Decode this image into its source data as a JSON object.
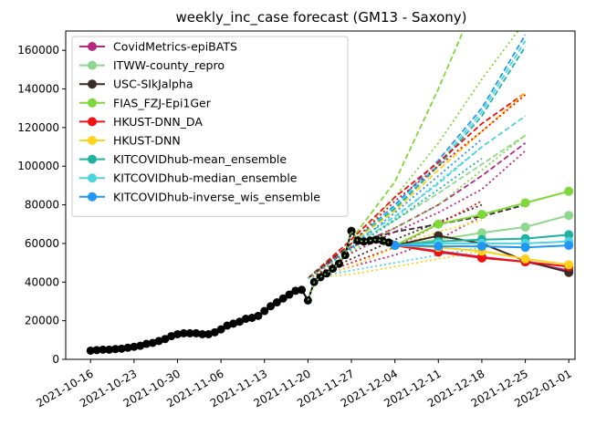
{
  "chart_data": {
    "type": "line",
    "title": "weekly_inc_case forecast (GM13 - Saxony)",
    "xlabel": "",
    "ylabel": "",
    "xlim": [
      "2021-10-12",
      "2022-01-02"
    ],
    "ylim": [
      0,
      170000
    ],
    "x_ticks": [
      "2021-10-16",
      "2021-10-23",
      "2021-10-30",
      "2021-11-06",
      "2021-11-13",
      "2021-11-20",
      "2021-11-27",
      "2021-12-04",
      "2021-12-11",
      "2021-12-18",
      "2021-12-25",
      "2022-01-01"
    ],
    "y_ticks": [
      0,
      20000,
      40000,
      60000,
      80000,
      100000,
      120000,
      140000,
      160000
    ],
    "y_tick_labels": [
      "0",
      "20000",
      "40000",
      "60000",
      "80000",
      "100000",
      "120000",
      "140000",
      "160000"
    ],
    "grid": false,
    "legend_position": "top-left",
    "observed": {
      "color": "#000000",
      "x": [
        "2021-10-16",
        "2021-10-17",
        "2021-10-18",
        "2021-10-19",
        "2021-10-20",
        "2021-10-21",
        "2021-10-22",
        "2021-10-23",
        "2021-10-24",
        "2021-10-25",
        "2021-10-26",
        "2021-10-27",
        "2021-10-28",
        "2021-10-29",
        "2021-10-30",
        "2021-10-31",
        "2021-11-01",
        "2021-11-02",
        "2021-11-03",
        "2021-11-04",
        "2021-11-05",
        "2021-11-06",
        "2021-11-07",
        "2021-11-08",
        "2021-11-09",
        "2021-11-10",
        "2021-11-11",
        "2021-11-12",
        "2021-11-13",
        "2021-11-14",
        "2021-11-15",
        "2021-11-16",
        "2021-11-17",
        "2021-11-18",
        "2021-11-19",
        "2021-11-20",
        "2021-11-21",
        "2021-11-22",
        "2021-11-23",
        "2021-11-24",
        "2021-11-25",
        "2021-11-26",
        "2021-11-27",
        "2021-11-28",
        "2021-11-29",
        "2021-11-30",
        "2021-12-01",
        "2021-12-02",
        "2021-12-03"
      ],
      "values": [
        4500,
        4800,
        5000,
        5000,
        5300,
        5500,
        6000,
        6500,
        7000,
        8000,
        8500,
        9500,
        10500,
        12000,
        13000,
        13500,
        13500,
        13500,
        13000,
        13000,
        14000,
        15500,
        17500,
        18500,
        19500,
        21000,
        21500,
        22500,
        25000,
        27500,
        29500,
        31500,
        33500,
        35500,
        36000,
        30500,
        40000,
        42500,
        44500,
        47000,
        49500,
        54000,
        66500,
        61500,
        61000,
        61500,
        62000,
        61500,
        60500
      ]
    },
    "forecast_x": [
      "2021-12-04",
      "2021-12-11",
      "2021-12-18",
      "2021-12-25",
      "2022-01-01"
    ],
    "series": [
      {
        "name": "CovidMetrics-epiBATS",
        "color": "#b5297f",
        "values": [
          59000,
          56000,
          53000,
          50500,
          46000
        ]
      },
      {
        "name": "ITWW-county_repro",
        "color": "#8ed88e",
        "values": [
          59000,
          62000,
          65500,
          68500,
          74500
        ]
      },
      {
        "name": "USC-SIkJalpha",
        "color": "#3b2b24",
        "values": [
          59000,
          64000,
          60000,
          51000,
          45000
        ]
      },
      {
        "name": "FIAS_FZJ-Epi1Ger",
        "color": "#7fd83a",
        "values": [
          59000,
          70000,
          75000,
          81000,
          87000
        ]
      },
      {
        "name": "HKUST-DNN_DA",
        "color": "#ee1111",
        "values": [
          59000,
          55500,
          52500,
          50500,
          48000
        ]
      },
      {
        "name": "HKUST-DNN",
        "color": "#ffd21a",
        "values": [
          59000,
          58000,
          56000,
          52000,
          49000
        ]
      },
      {
        "name": "KITCOVIDhub-mean_ensemble",
        "color": "#1fb2a1",
        "values": [
          59000,
          61000,
          62000,
          62500,
          64500
        ]
      },
      {
        "name": "KITCOVIDhub-median_ensemble",
        "color": "#4fd3de",
        "values": [
          59000,
          60000,
          60000,
          60000,
          61000
        ]
      },
      {
        "name": "KITCOVIDhub-inverse_wis_ensemble",
        "color": "#2196f3",
        "values": [
          59000,
          58500,
          58500,
          58000,
          59000
        ]
      }
    ],
    "intervals": [
      {
        "color": "#7fd83a",
        "style": "dashed",
        "points": [
          [
            "2021-11-20",
            42000
          ],
          [
            "2021-11-27",
            62000
          ],
          [
            "2021-12-04",
            92000
          ],
          [
            "2021-12-11",
            140000
          ],
          [
            "2021-12-15",
            170000
          ]
        ]
      },
      {
        "color": "#7fd83a",
        "style": "dotted",
        "points": [
          [
            "2021-11-20",
            42000
          ],
          [
            "2021-11-27",
            60000
          ],
          [
            "2021-12-04",
            84000
          ],
          [
            "2021-12-11",
            112000
          ],
          [
            "2021-12-18",
            145000
          ],
          [
            "2021-12-25",
            175000
          ]
        ]
      },
      {
        "color": "#2196f3",
        "style": "dashed",
        "points": [
          [
            "2021-11-20",
            42000
          ],
          [
            "2021-11-27",
            60000
          ],
          [
            "2021-12-04",
            80000
          ],
          [
            "2021-12-11",
            103000
          ],
          [
            "2021-12-18",
            130000
          ],
          [
            "2021-12-25",
            168000
          ]
        ]
      },
      {
        "color": "#4fd3de",
        "style": "dashed",
        "points": [
          [
            "2021-11-20",
            42000
          ],
          [
            "2021-11-27",
            60000
          ],
          [
            "2021-12-04",
            79000
          ],
          [
            "2021-12-11",
            101000
          ],
          [
            "2021-12-18",
            128000
          ],
          [
            "2021-12-25",
            165000
          ]
        ]
      },
      {
        "color": "#1fb2a1",
        "style": "dashed",
        "points": [
          [
            "2021-11-20",
            42000
          ],
          [
            "2021-11-27",
            60000
          ],
          [
            "2021-12-04",
            78000
          ],
          [
            "2021-12-11",
            100000
          ],
          [
            "2021-12-18",
            126000
          ],
          [
            "2021-12-25",
            162000
          ]
        ]
      },
      {
        "color": "#ee1111",
        "style": "dashed",
        "points": [
          [
            "2021-11-20",
            42000
          ],
          [
            "2021-11-27",
            62000
          ],
          [
            "2021-12-04",
            84000
          ],
          [
            "2021-12-11",
            102000
          ],
          [
            "2021-12-18",
            122000
          ],
          [
            "2021-12-25",
            138000
          ]
        ]
      },
      {
        "color": "#ffd21a",
        "style": "dashed",
        "points": [
          [
            "2021-11-20",
            42000
          ],
          [
            "2021-11-27",
            60000
          ],
          [
            "2021-12-04",
            77000
          ],
          [
            "2021-12-11",
            98000
          ],
          [
            "2021-12-18",
            118000
          ],
          [
            "2021-12-25",
            138000
          ]
        ]
      },
      {
        "color": "#4fd3de",
        "style": "dashed",
        "points": [
          [
            "2021-11-20",
            42000
          ],
          [
            "2021-11-27",
            60000
          ],
          [
            "2021-12-04",
            74000
          ],
          [
            "2021-12-11",
            91000
          ],
          [
            "2021-12-18",
            110000
          ],
          [
            "2021-12-25",
            126000
          ]
        ]
      },
      {
        "color": "#8ed88e",
        "style": "dashed",
        "points": [
          [
            "2021-11-20",
            42000
          ],
          [
            "2021-11-27",
            59000
          ],
          [
            "2021-12-04",
            72000
          ],
          [
            "2021-12-11",
            86000
          ],
          [
            "2021-12-18",
            101000
          ],
          [
            "2021-12-25",
            116000
          ]
        ]
      },
      {
        "color": "#b5297f",
        "style": "dashed",
        "points": [
          [
            "2021-11-20",
            42000
          ],
          [
            "2021-11-27",
            58000
          ],
          [
            "2021-12-04",
            68000
          ],
          [
            "2021-12-11",
            80000
          ],
          [
            "2021-12-18",
            95000
          ],
          [
            "2021-12-25",
            112000
          ]
        ]
      },
      {
        "color": "#3b2b24",
        "style": "dashed",
        "points": [
          [
            "2021-11-20",
            42000
          ],
          [
            "2021-11-27",
            60000
          ],
          [
            "2021-12-04",
            66000
          ],
          [
            "2021-12-11",
            70000
          ],
          [
            "2021-12-18",
            74000
          ],
          [
            "2021-12-25",
            80000
          ]
        ]
      },
      {
        "color": "#ee1111",
        "style": "dotted",
        "points": [
          [
            "2021-11-20",
            42000
          ],
          [
            "2021-11-27",
            60000
          ],
          [
            "2021-12-04",
            82000
          ],
          [
            "2021-12-11",
            100000
          ],
          [
            "2021-12-18",
            118000
          ],
          [
            "2021-12-25",
            137000
          ]
        ]
      },
      {
        "color": "#2196f3",
        "style": "dotted",
        "points": [
          [
            "2021-11-20",
            42000
          ],
          [
            "2021-11-27",
            58000
          ],
          [
            "2021-12-04",
            76000
          ],
          [
            "2021-12-11",
            95000
          ],
          [
            "2021-12-18",
            114000
          ]
        ]
      },
      {
        "color": "#4fd3de",
        "style": "dotted",
        "points": [
          [
            "2021-11-20",
            42000
          ],
          [
            "2021-11-27",
            57000
          ],
          [
            "2021-12-04",
            73000
          ],
          [
            "2021-12-11",
            92000
          ],
          [
            "2021-12-18",
            110000
          ]
        ]
      },
      {
        "color": "#1fb2a1",
        "style": "dotted",
        "points": [
          [
            "2021-11-20",
            42000
          ],
          [
            "2021-11-27",
            57000
          ],
          [
            "2021-12-04",
            72000
          ],
          [
            "2021-12-11",
            88000
          ],
          [
            "2021-12-18",
            104000
          ]
        ]
      },
      {
        "color": "#b5297f",
        "style": "dotted",
        "points": [
          [
            "2021-11-20",
            42000
          ],
          [
            "2021-11-27",
            55000
          ],
          [
            "2021-12-04",
            66000
          ],
          [
            "2021-12-11",
            76000
          ],
          [
            "2021-12-18",
            88000
          ],
          [
            "2021-12-25",
            108000
          ]
        ]
      },
      {
        "color": "#3b2b24",
        "style": "dotted",
        "points": [
          [
            "2021-11-20",
            42000
          ],
          [
            "2021-11-27",
            52000
          ],
          [
            "2021-12-04",
            62000
          ],
          [
            "2021-12-11",
            71000
          ],
          [
            "2021-12-18",
            80000
          ]
        ]
      },
      {
        "color": "#7fd83a",
        "style": "dotted",
        "points": [
          [
            "2021-11-20",
            42000
          ],
          [
            "2021-11-27",
            56000
          ],
          [
            "2021-12-04",
            68000
          ],
          [
            "2021-12-11",
            80000
          ],
          [
            "2021-12-18",
            98000
          ],
          [
            "2021-12-25",
            116000
          ]
        ]
      },
      {
        "color": "#ee1111",
        "style": "dotted",
        "points": [
          [
            "2021-11-20",
            42000
          ],
          [
            "2021-11-27",
            50000
          ],
          [
            "2021-12-04",
            58000
          ],
          [
            "2021-12-11",
            70000
          ],
          [
            "2021-12-18",
            82000
          ]
        ]
      },
      {
        "color": "#b5297f",
        "style": "dotted",
        "points": [
          [
            "2021-11-20",
            42000
          ],
          [
            "2021-11-27",
            48000
          ],
          [
            "2021-12-04",
            54000
          ],
          [
            "2021-12-11",
            62000
          ],
          [
            "2021-12-18",
            74000
          ]
        ]
      },
      {
        "color": "#ffd21a",
        "style": "dotted",
        "points": [
          [
            "2021-11-20",
            42000
          ],
          [
            "2021-11-27",
            48000
          ],
          [
            "2021-12-04",
            58000
          ],
          [
            "2021-12-11",
            66000
          ],
          [
            "2021-12-18",
            72000
          ]
        ]
      },
      {
        "color": "#ffd21a",
        "style": "dotted",
        "points": [
          [
            "2021-11-20",
            42000
          ],
          [
            "2021-11-27",
            44000
          ],
          [
            "2021-12-04",
            48000
          ],
          [
            "2021-12-11",
            52000
          ],
          [
            "2021-12-18",
            56000
          ]
        ]
      },
      {
        "color": "#4fd3de",
        "style": "dotted",
        "points": [
          [
            "2021-11-20",
            42000
          ],
          [
            "2021-11-27",
            46000
          ],
          [
            "2021-12-04",
            50000
          ],
          [
            "2021-12-11",
            54000
          ],
          [
            "2021-12-18",
            58000
          ]
        ]
      }
    ]
  }
}
